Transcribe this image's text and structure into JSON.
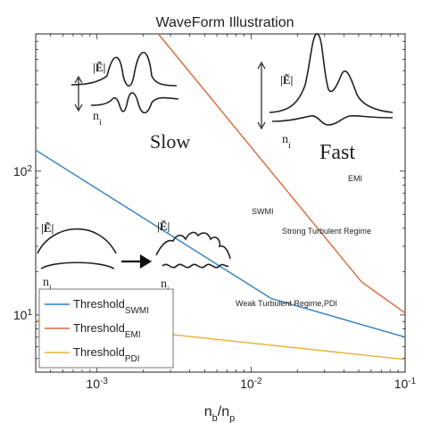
{
  "chart_data": {
    "type": "line",
    "title": "WaveForm Illustration",
    "xlabel": "n_b/n_p",
    "ylabel": "",
    "xscale": "log",
    "yscale": "log",
    "xlim": [
      0.0004,
      0.1
    ],
    "ylim": [
      4,
      900
    ],
    "x_ticks": [
      {
        "value": 0.001,
        "base": "10",
        "exp": "-3"
      },
      {
        "value": 0.01,
        "base": "10",
        "exp": "-2"
      },
      {
        "value": 0.1,
        "base": "10",
        "exp": "-1"
      }
    ],
    "y_ticks": [
      {
        "value": 10,
        "base": "10",
        "exp": "1"
      },
      {
        "value": 100,
        "base": "10",
        "exp": "2"
      }
    ],
    "grid": false,
    "legend_position": "bottom-left",
    "series": [
      {
        "name": "Threshold",
        "sub": "SWMI",
        "color": "#2f7fc1",
        "x": [
          0.0004,
          0.0135,
          0.1
        ],
        "y": [
          140,
          13,
          7
        ]
      },
      {
        "name": "Threshold",
        "sub": "EMI",
        "color": "#d9693a",
        "x": [
          0.0025,
          0.052,
          0.1
        ],
        "y": [
          900,
          17,
          10.3
        ]
      },
      {
        "name": "Threshold",
        "sub": "PDI",
        "color": "#e8b23a",
        "x": [
          0.0004,
          0.1
        ],
        "y": [
          9.2,
          4.9
        ]
      }
    ],
    "annotations": [
      {
        "text": "Slow",
        "style": "big"
      },
      {
        "text": "Fast",
        "style": "big"
      },
      {
        "text": "EMI",
        "style": "small"
      },
      {
        "text": "SWMI",
        "style": "small"
      },
      {
        "text": "Strong Turbulent Regime",
        "style": "small"
      },
      {
        "text": "Weak Turbulent Regime,PDI",
        "style": "small"
      }
    ],
    "inset_labels": {
      "field": "|Ẽ|",
      "density": "n",
      "density_sub": "i"
    }
  }
}
